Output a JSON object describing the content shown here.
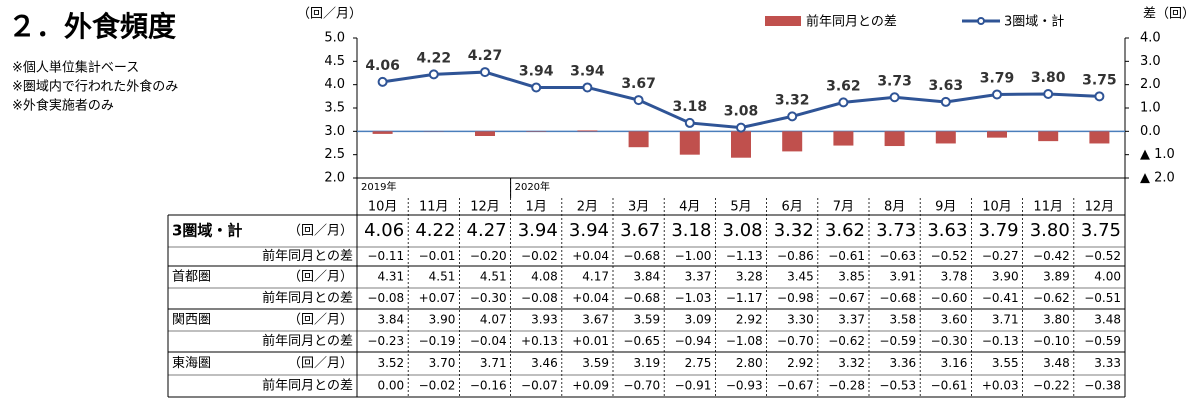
{
  "title": "２．外食頻度",
  "notes": [
    "※個人単位集計ベース",
    "※圏域内で行われた外食のみ",
    "※外食実施者のみ"
  ],
  "chart_data": {
    "type": "combo",
    "ylabel": "（回／月）",
    "y2label": "差（回）",
    "categories": [
      "10月",
      "11月",
      "12月",
      "1月",
      "2月",
      "3月",
      "4月",
      "5月",
      "6月",
      "7月",
      "8月",
      "9月",
      "10月",
      "11月",
      "12月"
    ],
    "years": [
      "2019年",
      null,
      null,
      "2020年",
      null,
      null,
      null,
      null,
      null,
      null,
      null,
      null,
      null,
      null,
      null
    ],
    "ylim": [
      2.0,
      5.0
    ],
    "yticks": [
      {
        "value": 2.0,
        "label": "2.0"
      },
      {
        "value": 2.5,
        "label": "2.5"
      },
      {
        "value": 3.0,
        "label": "3.0"
      },
      {
        "value": 3.5,
        "label": "3.5"
      },
      {
        "value": 4.0,
        "label": "4.0"
      },
      {
        "value": 4.5,
        "label": "4.5"
      },
      {
        "value": 5.0,
        "label": "5.0"
      }
    ],
    "y2lim": [
      -2.0,
      4.0
    ],
    "y2ticks": [
      {
        "value": -2.0,
        "label": "▲ 2.0"
      },
      {
        "value": -1.0,
        "label": "▲ 1.0"
      },
      {
        "value": 0.0,
        "label": "0.0"
      },
      {
        "value": 1.0,
        "label": "1.0"
      },
      {
        "value": 2.0,
        "label": "2.0"
      },
      {
        "value": 3.0,
        "label": "3.0"
      },
      {
        "value": 4.0,
        "label": "4.0"
      }
    ],
    "series": [
      {
        "name": "前年同月との差",
        "type": "bar",
        "axis": "y2",
        "color": "#c0504d",
        "values": [
          -0.11,
          -0.01,
          -0.2,
          -0.02,
          0.04,
          -0.68,
          -1.0,
          -1.13,
          -0.86,
          -0.61,
          -0.63,
          -0.52,
          -0.27,
          -0.42,
          -0.52
        ],
        "value_labels": [
          "−0.11",
          "−0.01",
          "−0.20",
          "−0.02",
          "+0.04",
          "−0.68",
          "−1.00",
          "−1.13",
          "−0.86",
          "−0.61",
          "−0.63",
          "−0.52",
          "−0.27",
          "−0.42",
          "−0.52"
        ]
      },
      {
        "name": "3圏域・計",
        "type": "line",
        "color": "#2f5496",
        "values": [
          4.06,
          4.22,
          4.27,
          3.94,
          3.94,
          3.67,
          3.18,
          3.08,
          3.32,
          3.62,
          3.73,
          3.63,
          3.79,
          3.8,
          3.75
        ],
        "value_labels": [
          "4.06",
          "4.22",
          "4.27",
          "3.94",
          "3.94",
          "3.67",
          "3.18",
          "3.08",
          "3.32",
          "3.62",
          "3.73",
          "3.63",
          "3.79",
          "3.80",
          "3.75"
        ]
      }
    ]
  },
  "table": {
    "rows": [
      {
        "name": "首都圏",
        "values": [
          "4.31",
          "4.51",
          "4.51",
          "4.08",
          "4.17",
          "3.84",
          "3.37",
          "3.28",
          "3.45",
          "3.85",
          "3.91",
          "3.78",
          "3.90",
          "3.89",
          "4.00"
        ],
        "diffs": [
          "−0.08",
          "+0.07",
          "−0.30",
          "−0.08",
          "+0.04",
          "−0.68",
          "−1.03",
          "−1.17",
          "−0.98",
          "−0.67",
          "−0.68",
          "−0.60",
          "−0.41",
          "−0.62",
          "−0.51"
        ]
      },
      {
        "name": "関西圏",
        "values": [
          "3.84",
          "3.90",
          "4.07",
          "3.93",
          "3.67",
          "3.59",
          "3.09",
          "2.92",
          "3.30",
          "3.37",
          "3.58",
          "3.60",
          "3.71",
          "3.80",
          "3.48"
        ],
        "diffs": [
          "−0.23",
          "−0.19",
          "−0.04",
          "+0.13",
          "+0.01",
          "−0.65",
          "−0.94",
          "−1.08",
          "−0.70",
          "−0.62",
          "−0.59",
          "−0.30",
          "−0.13",
          "−0.10",
          "−0.59"
        ]
      },
      {
        "name": "東海圏",
        "values": [
          "3.52",
          "3.70",
          "3.71",
          "3.46",
          "3.59",
          "3.19",
          "2.75",
          "2.80",
          "2.92",
          "3.32",
          "3.36",
          "3.16",
          "3.55",
          "3.48",
          "3.33"
        ],
        "diffs": [
          "0.00",
          "−0.02",
          "−0.16",
          "−0.07",
          "+0.09",
          "−0.70",
          "−0.91",
          "−0.93",
          "−0.67",
          "−0.28",
          "−0.53",
          "−0.61",
          "+0.03",
          "−0.22",
          "−0.38"
        ]
      }
    ]
  }
}
